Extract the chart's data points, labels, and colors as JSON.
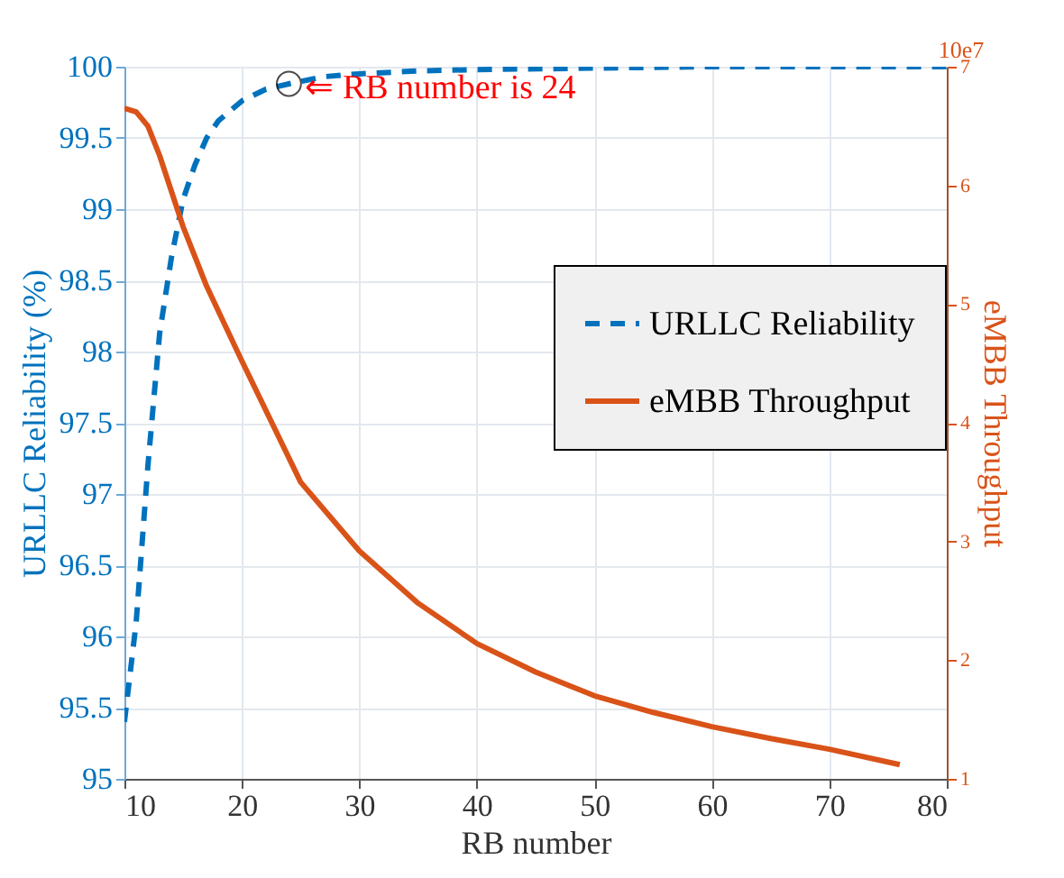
{
  "chart_data": {
    "type": "line",
    "xlabel": "RB number",
    "ylabel": "URLLC Reliability (%)",
    "y2label": "eMBB Throughput",
    "xlim": [
      10,
      80
    ],
    "xticks": [
      10,
      20,
      30,
      40,
      50,
      60,
      70,
      80
    ],
    "ylim": [
      95,
      100
    ],
    "yticks": [
      95,
      95.5,
      96,
      96.5,
      97,
      97.5,
      98,
      98.5,
      99,
      99.5,
      100
    ],
    "y2lim": [
      1,
      7
    ],
    "y2ticks": [
      1,
      2,
      3,
      4,
      5,
      6,
      7
    ],
    "grid": true,
    "legend": "right",
    "marker": "none",
    "series": [
      {
        "name": "URLLC Reliability",
        "color": "#0072bd",
        "line_style": "dashed",
        "x": [
          10,
          11,
          12,
          13,
          14,
          15,
          16,
          17,
          18,
          20,
          22,
          24,
          27,
          30,
          35,
          40,
          50,
          60,
          70,
          80
        ],
        "values": [
          95.4,
          96.1,
          97.2,
          98.13,
          98.66,
          99.07,
          99.31,
          99.5,
          99.62,
          99.76,
          99.84,
          99.88,
          99.93,
          99.95,
          99.97,
          99.98,
          99.99,
          100,
          100,
          100
        ]
      },
      {
        "name": "eMBB Throughput",
        "color": "#d95319",
        "line_style": "solid",
        "axis": "y2",
        "x": [
          10,
          11,
          12,
          13,
          14,
          15,
          17,
          20,
          25,
          30,
          35,
          40,
          45,
          50,
          55,
          60,
          65,
          70,
          76
        ],
        "values": [
          6.65,
          6.62,
          6.5,
          6.25,
          5.95,
          5.65,
          5.15,
          4.52,
          3.5,
          2.92,
          2.48,
          2.14,
          1.9,
          1.7,
          1.56,
          1.44,
          1.34,
          1.25,
          1.12
        ]
      }
    ],
    "annotations": [
      {
        "text": "⇐ RB number is 24",
        "x": 24,
        "y": 99.88
      },
      "10e7"
    ]
  }
}
